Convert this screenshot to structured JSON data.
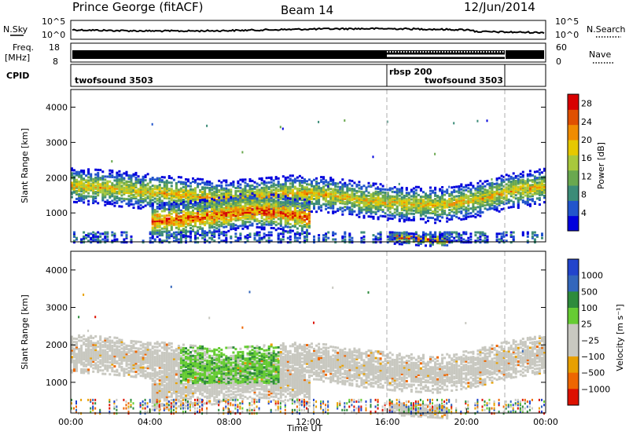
{
  "header": {
    "station": "Prince George (fitACF)",
    "beam": "Beam 14",
    "date": "12/Jun/2014"
  },
  "noise_panel": {
    "left_label": "N.Sky",
    "left_ticks": [
      "10^5",
      "10^0"
    ],
    "right_label": "N.Search",
    "right_ticks": [
      "10^5",
      "10^0"
    ]
  },
  "freq_panel": {
    "left_label_top": "Freq.",
    "left_label_bottom": "[MHz]",
    "left_ticks": [
      "18",
      "8"
    ],
    "right_label": "Nave",
    "right_ticks": [
      "60",
      "0"
    ]
  },
  "cpid_panel": {
    "label": "CPID",
    "segments": [
      {
        "name": "twofsound 3503",
        "start_hour": 0,
        "end_hour": 16
      },
      {
        "name": "rbsp 200",
        "start_hour": 16,
        "end_hour": 21.8
      },
      {
        "name": "twofsound 3503",
        "start_hour": 16,
        "end_hour": 21.8
      }
    ]
  },
  "colors": {
    "power_scale": [
      "#0000dd",
      "#2255cc",
      "#3c8c78",
      "#6aa84f",
      "#a8c83c",
      "#e6c800",
      "#f08c00",
      "#e05000",
      "#d80000"
    ],
    "velocity_scale": [
      "#2244cc",
      "#3366bb",
      "#2e8b3c",
      "#66cc33",
      "#c8c8c0",
      "#c8c8c0",
      "#e8a000",
      "#ee6600",
      "#dd1100"
    ],
    "trace": "#000000"
  },
  "chart_data": [
    {
      "type": "heatmap",
      "panel": "power",
      "xlabel": "",
      "ylabel": "Slant Range [km]",
      "x_range_hours": [
        0,
        24
      ],
      "ylim": [
        180,
        4500
      ],
      "yticks": [
        "1000",
        "2000",
        "3000",
        "4000"
      ],
      "colorbar_label": "Power [dB]",
      "colorbar_ticks": [
        "4",
        "8",
        "12",
        "16",
        "20",
        "24",
        "28"
      ],
      "colorbar_range": [
        0,
        30
      ],
      "bands": [
        {
          "center_km": [
            1800,
            1750,
            1650,
            1550,
            1450,
            1500,
            1600,
            1550,
            1400,
            1300,
            1250,
            1400,
            1650,
            1800
          ],
          "width_km": 500,
          "start_hour": 0,
          "end_hour": 24,
          "max_power_db": 22
        },
        {
          "center_km": [
            800,
            850,
            950,
            1100,
            1050,
            900
          ],
          "width_km": 500,
          "start_hour": 4,
          "end_hour": 12,
          "max_power_db": 30
        },
        {
          "center_km": [
            350,
            300,
            250
          ],
          "width_km": 180,
          "start_hour": 16,
          "end_hour": 19,
          "max_power_db": 30
        }
      ],
      "sparse_echoes_km": [
        3500,
        2600,
        1800
      ],
      "vertical_markers_hours": [
        16,
        21.8
      ]
    },
    {
      "type": "heatmap",
      "panel": "velocity",
      "xlabel": "Time UT",
      "ylabel": "Slant Range [km]",
      "x_range_hours": [
        0,
        24
      ],
      "xticks": [
        "00:00",
        "04:00",
        "08:00",
        "12:00",
        "16:00",
        "20:00",
        "00:00"
      ],
      "ylim": [
        180,
        4500
      ],
      "yticks": [
        "1000",
        "2000",
        "3000",
        "4000"
      ],
      "colorbar_label": "Velocity [m s⁻¹]",
      "colorbar_ticks": [
        "1000",
        "500",
        "100",
        "25",
        "−25",
        "−100",
        "−500",
        "−1000"
      ],
      "ground_scatter_color": "#c8c8c0",
      "ionospheric_region": {
        "start_hour": 5.5,
        "end_hour": 10.5,
        "range_km": [
          1000,
          2000
        ],
        "velocity_ms": [
          50,
          300
        ]
      },
      "vertical_markers_hours": [
        16,
        21.8
      ]
    }
  ]
}
